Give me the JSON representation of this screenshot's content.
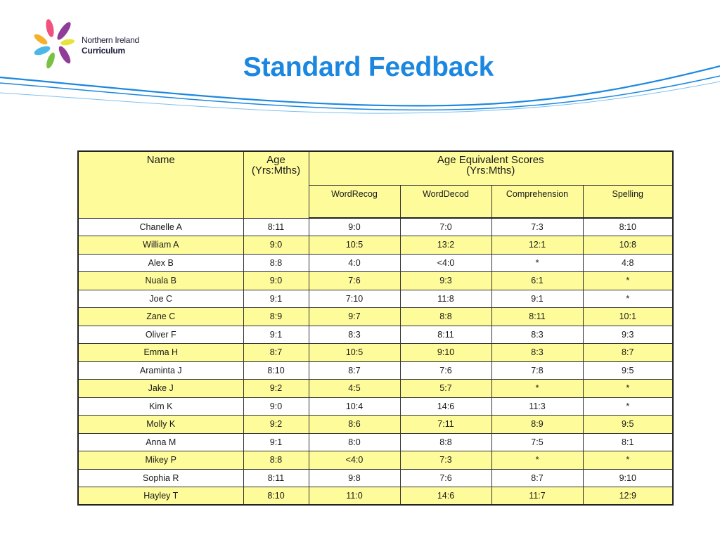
{
  "logo": {
    "line1": "Northern Ireland",
    "line2": "Curriculum",
    "colors": [
      "#f0527d",
      "#f6b12a",
      "#e9e23a",
      "#4cb7e6",
      "#8e3e97",
      "#79c143"
    ]
  },
  "title": "Standard Feedback",
  "table": {
    "header": {
      "name": "Name",
      "age_line1": "Age",
      "age_line2": "(Yrs:Mths)",
      "group_line1": "Age Equivalent Scores",
      "group_line2": "(Yrs:Mths)",
      "columns": [
        "WordRecog",
        "WordDecod",
        "Comprehension",
        "Spelling"
      ]
    },
    "rows": [
      {
        "name": "Chanelle A",
        "age": "8:11",
        "word_recog": "9:0",
        "word_decod": "7:0",
        "comprehension": "7:3",
        "spelling": "8:10"
      },
      {
        "name": "William A",
        "age": "9:0",
        "word_recog": "10:5",
        "word_decod": "13:2",
        "comprehension": "12:1",
        "spelling": "10:8"
      },
      {
        "name": "Alex B",
        "age": "8:8",
        "word_recog": "4:0",
        "word_decod": "<4:0",
        "comprehension": "*",
        "spelling": "4:8"
      },
      {
        "name": "Nuala B",
        "age": "9:0",
        "word_recog": "7:6",
        "word_decod": "9:3",
        "comprehension": "6:1",
        "spelling": "*"
      },
      {
        "name": "Joe C",
        "age": "9:1",
        "word_recog": "7:10",
        "word_decod": "11:8",
        "comprehension": "9:1",
        "spelling": "*"
      },
      {
        "name": "Zane C",
        "age": "8:9",
        "word_recog": "9:7",
        "word_decod": "8:8",
        "comprehension": "8:11",
        "spelling": "10:1"
      },
      {
        "name": "Oliver F",
        "age": "9:1",
        "word_recog": "8:3",
        "word_decod": "8:11",
        "comprehension": "8:3",
        "spelling": "9:3"
      },
      {
        "name": "Emma H",
        "age": "8:7",
        "word_recog": "10:5",
        "word_decod": "9:10",
        "comprehension": "8:3",
        "spelling": "8:7"
      },
      {
        "name": "Araminta J",
        "age": "8:10",
        "word_recog": "8:7",
        "word_decod": "7:6",
        "comprehension": "7:8",
        "spelling": "9:5"
      },
      {
        "name": "Jake J",
        "age": "9:2",
        "word_recog": "4:5",
        "word_decod": "5:7",
        "comprehension": "*",
        "spelling": "*"
      },
      {
        "name": "Kim K",
        "age": "9:0",
        "word_recog": "10:4",
        "word_decod": "14:6",
        "comprehension": "11:3",
        "spelling": "*"
      },
      {
        "name": "Molly K",
        "age": "9:2",
        "word_recog": "8:6",
        "word_decod": "7:11",
        "comprehension": "8:9",
        "spelling": "9:5"
      },
      {
        "name": "Anna M",
        "age": "9:1",
        "word_recog": "8:0",
        "word_decod": "8:8",
        "comprehension": "7:5",
        "spelling": "8:1"
      },
      {
        "name": "Mikey P",
        "age": "8:8",
        "word_recog": "<4:0",
        "word_decod": "7:3",
        "comprehension": "*",
        "spelling": "*"
      },
      {
        "name": "Sophia R",
        "age": "8:11",
        "word_recog": "9:8",
        "word_decod": "7:6",
        "comprehension": "8:7",
        "spelling": "9:10"
      },
      {
        "name": "Hayley T",
        "age": "8:10",
        "word_recog": "11:0",
        "word_decod": "14:6",
        "comprehension": "11:7",
        "spelling": "12:9"
      }
    ]
  },
  "colors": {
    "title": "#1b87e0",
    "header_fill": "#fefb9a",
    "row_alt_fill": "#fefb9a",
    "swoosh": "#1b87e0"
  }
}
